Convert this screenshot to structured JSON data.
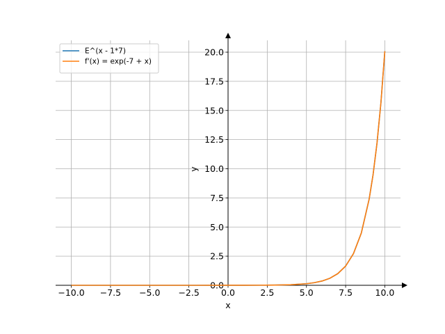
{
  "chart_data": {
    "type": "line",
    "title": "",
    "xlabel": "x",
    "ylabel": "y",
    "xlim": [
      -11,
      11
    ],
    "ylim": [
      -0.1,
      20.0
    ],
    "grid": true,
    "legend_position": "top-left",
    "x_ticks": [
      -10.0,
      -7.5,
      -5.0,
      -2.5,
      0.0,
      2.5,
      5.0,
      7.5,
      10.0
    ],
    "x_tick_labels": [
      "−10.0",
      "−7.5",
      "−5.0",
      "−2.5",
      "0.0",
      "2.5",
      "5.0",
      "7.5",
      "10.0"
    ],
    "y_ticks": [
      0.0,
      2.5,
      5.0,
      7.5,
      10.0,
      12.5,
      15.0,
      17.5,
      20.0
    ],
    "y_tick_labels": [
      "0.0",
      "2.5",
      "5.0",
      "7.5",
      "10.0",
      "12.5",
      "15.0",
      "17.5",
      "20.0"
    ],
    "series": [
      {
        "name": "E^(x - 1*7)",
        "color": "#1f77b4",
        "x": [
          -10,
          -8,
          -6,
          -4,
          -2,
          0,
          1,
          2,
          3,
          4,
          5,
          5.5,
          6,
          6.5,
          7,
          7.5,
          8,
          8.5,
          9,
          9.25,
          9.5,
          9.75,
          10
        ],
        "values": [
          0.0,
          0.0,
          0.0,
          0.0,
          0.0,
          0.001,
          0.002,
          0.007,
          0.018,
          0.05,
          0.135,
          0.223,
          0.368,
          0.607,
          1.0,
          1.649,
          2.718,
          4.482,
          7.389,
          9.488,
          12.182,
          15.643,
          20.086
        ]
      },
      {
        "name": "f'(x) = exp(-7 + x)",
        "color": "#ff7f0e",
        "x": [
          -10,
          -8,
          -6,
          -4,
          -2,
          0,
          1,
          2,
          3,
          4,
          5,
          5.5,
          6,
          6.5,
          7,
          7.5,
          8,
          8.5,
          9,
          9.25,
          9.5,
          9.75,
          10
        ],
        "values": [
          0.0,
          0.0,
          0.0,
          0.0,
          0.0,
          0.001,
          0.002,
          0.007,
          0.018,
          0.05,
          0.135,
          0.223,
          0.368,
          0.607,
          1.0,
          1.649,
          2.718,
          4.482,
          7.389,
          9.488,
          12.182,
          15.643,
          20.086
        ]
      }
    ]
  }
}
